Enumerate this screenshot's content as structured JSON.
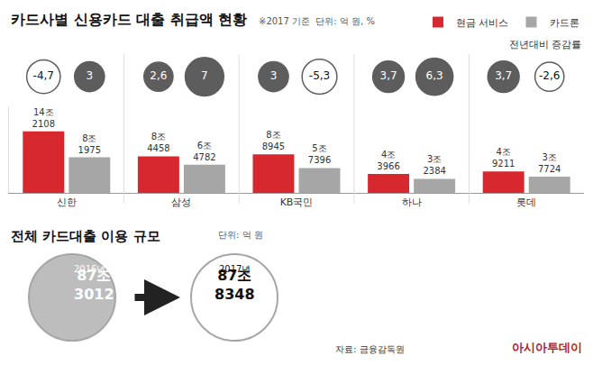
{
  "chart_data": [
    {
      "type": "bar",
      "title": "카드사별 신용카드 대출 취급액 현황",
      "note": "※2017 기준",
      "unit": "단위: 억 원, %",
      "categories": [
        "신한",
        "삼성",
        "KB국민",
        "하나",
        "롯데"
      ],
      "series": [
        {
          "name": "현금 서비스",
          "color": "#d7282f",
          "values": [
            142108,
            84458,
            88945,
            43966,
            49211
          ],
          "value_labels": [
            "14조 2108",
            "8조 4458",
            "8조 8945",
            "4조 3966",
            "4조 9211"
          ],
          "change_rates": [
            -4.7,
            2.6,
            3,
            3.7,
            3.7
          ],
          "change_labels": [
            "-4,7",
            "2,6",
            "3",
            "3,7",
            "3,7"
          ]
        },
        {
          "name": "카드론",
          "color": "#a6a6a6",
          "values": [
            81975,
            64782,
            57396,
            32384,
            37724
          ],
          "value_labels": [
            "8조 1975",
            "6조 4782",
            "5조 7396",
            "3조 2384",
            "3조 7724"
          ],
          "change_rates": [
            3,
            7,
            -5.3,
            6.3,
            -2.6
          ],
          "change_labels": [
            "3",
            "7",
            "-5,3",
            "6,3",
            "-2,6"
          ]
        }
      ],
      "change_label": "전년대비 증감률",
      "ylim": [
        0,
        200000
      ],
      "tick_labels": "x",
      "data_labels": true,
      "legend": "top right"
    },
    {
      "type": "comparison",
      "title": "전체 카드대출 이용 규모",
      "unit": "단위: 억 원",
      "categories": [
        "2016년",
        "2017년"
      ],
      "values": [
        873012,
        878348
      ],
      "value_labels": [
        "87조 3012",
        "87조 8348"
      ],
      "colors": [
        "#bdbdbd",
        "#ffffff"
      ]
    }
  ],
  "source": "자료: 금융감독원",
  "credit": "아시아투데이"
}
